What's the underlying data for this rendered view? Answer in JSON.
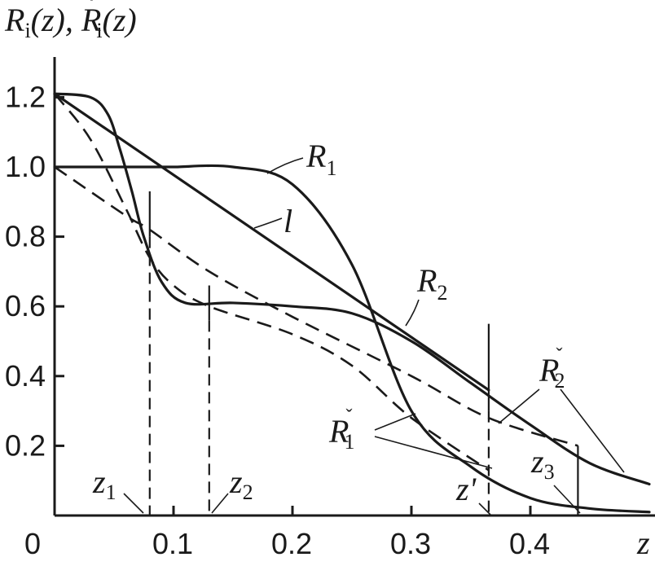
{
  "chart_data": {
    "type": "line",
    "ylabel": "R_i(z), Ři(z)",
    "xlabel": "z",
    "xlim": [
      0,
      0.5
    ],
    "ylim": [
      0,
      1.3
    ],
    "x_ticks": [
      "0",
      "0.1",
      "0.2",
      "0.3",
      "0.4"
    ],
    "y_ticks": [
      "0.2",
      "0.4",
      "0.6",
      "0.8",
      "1.0",
      "1.2"
    ],
    "series": [
      {
        "name": "R1",
        "style": "solid",
        "x": [
          0,
          0.02,
          0.04,
          0.05,
          0.06,
          0.07,
          0.08,
          0.1,
          0.15,
          0.2,
          0.25,
          0.3,
          0.35,
          0.4,
          0.45,
          0.5
        ],
        "y": [
          1.0,
          1.0,
          1.0,
          1.0,
          1.0,
          1.0,
          1.0,
          1.0,
          1.0,
          0.95,
          0.72,
          0.3,
          0.14,
          0.05,
          0.02,
          0.01
        ]
      },
      {
        "name": "R2",
        "style": "solid",
        "x": [
          0,
          0.03,
          0.045,
          0.055,
          0.065,
          0.075,
          0.09,
          0.11,
          0.15,
          0.2,
          0.25,
          0.3,
          0.35,
          0.4,
          0.45,
          0.5
        ],
        "y": [
          1.21,
          1.2,
          1.15,
          1.05,
          0.93,
          0.8,
          0.67,
          0.61,
          0.61,
          0.6,
          0.58,
          0.5,
          0.38,
          0.26,
          0.15,
          0.09
        ]
      },
      {
        "name": "l",
        "style": "solid",
        "x": [
          0,
          0.365
        ],
        "y": [
          1.21,
          0.36
        ]
      },
      {
        "name": "Ř1",
        "style": "dashed",
        "x": [
          0,
          0.03,
          0.06,
          0.08,
          0.1,
          0.13,
          0.2,
          0.25,
          0.3,
          0.365
        ],
        "y": [
          1.21,
          1.08,
          0.88,
          0.74,
          0.66,
          0.6,
          0.52,
          0.43,
          0.28,
          0.13
        ]
      },
      {
        "name": "Ř2",
        "style": "dashed",
        "x": [
          0,
          0.06,
          0.08,
          0.13,
          0.2,
          0.3,
          0.365,
          0.44
        ],
        "y": [
          1.0,
          0.86,
          0.82,
          0.7,
          0.57,
          0.4,
          0.28,
          0.2
        ]
      }
    ],
    "markers": [
      {
        "label": "z1",
        "x": 0.08
      },
      {
        "label": "z2",
        "x": 0.13
      },
      {
        "label": "z'",
        "x": 0.365
      },
      {
        "label": "z3",
        "x": 0.44
      }
    ],
    "annotations": [
      "R1",
      "R2",
      "l",
      "Ř1",
      "Ř2"
    ]
  }
}
